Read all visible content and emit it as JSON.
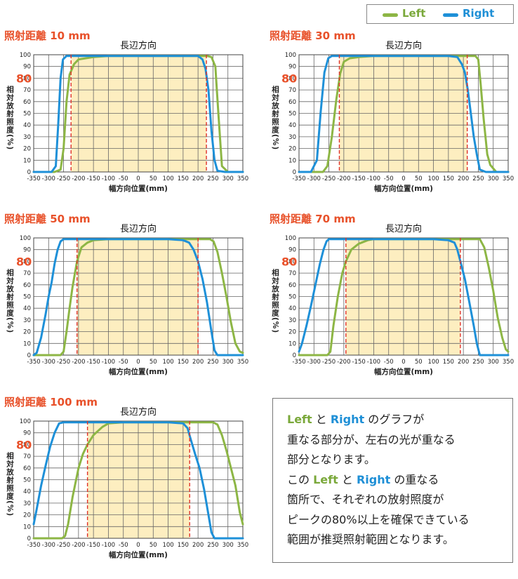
{
  "legend": {
    "left_label": "Left",
    "right_label": "Right"
  },
  "colors": {
    "left": "#8db645",
    "right": "#1e90d8",
    "marker": "#e0322a",
    "title": "#e8512a",
    "fill": "#fdeec0"
  },
  "chart_data": [
    {
      "type": "line",
      "title": "照射距離 10 mm",
      "subtitle": "長辺方向",
      "xlabel": "幅方向位置(mm)",
      "ylabel": "相対放射照度(%)",
      "highlight_label": "80",
      "xlim": [
        -350,
        350
      ],
      "ylim": [
        0,
        100
      ],
      "xticks": [
        -350,
        -300,
        -250,
        -200,
        -150,
        -100,
        -50,
        0,
        50,
        100,
        150,
        200,
        250,
        300,
        350
      ],
      "yticks": [
        0,
        10,
        20,
        30,
        40,
        50,
        60,
        70,
        80,
        90,
        100
      ],
      "region": [
        -225,
        228
      ],
      "series": [
        {
          "name": "Left",
          "x": [
            -350,
            -280,
            -260,
            -250,
            -240,
            -230,
            -215,
            -200,
            -150,
            -100,
            -50,
            0,
            50,
            100,
            150,
            200,
            230,
            245,
            258,
            268,
            280,
            300,
            350
          ],
          "y": [
            0,
            0,
            2,
            20,
            60,
            83,
            92,
            96,
            98,
            99,
            99,
            99,
            99,
            99,
            99,
            99,
            99,
            98,
            90,
            50,
            5,
            0,
            0
          ]
        },
        {
          "name": "Right",
          "x": [
            -350,
            -290,
            -276,
            -268,
            -260,
            -252,
            -240,
            -200,
            -150,
            -100,
            -50,
            0,
            50,
            100,
            150,
            200,
            215,
            225,
            235,
            245,
            255,
            265,
            290,
            350
          ],
          "y": [
            0,
            0,
            5,
            40,
            80,
            96,
            99,
            99,
            99,
            99,
            99,
            99,
            99,
            99,
            99,
            99,
            96,
            88,
            70,
            35,
            10,
            1,
            0,
            0
          ]
        }
      ]
    },
    {
      "type": "line",
      "title": "照射距離 30 mm",
      "subtitle": "長辺方向",
      "xlabel": "幅方向位置(mm)",
      "ylabel": "相対放射照度(%)",
      "highlight_label": "80",
      "xlim": [
        -350,
        350
      ],
      "ylim": [
        0,
        100
      ],
      "xticks": [
        -350,
        -300,
        -250,
        -200,
        -150,
        -100,
        -50,
        0,
        50,
        100,
        150,
        200,
        250,
        300,
        350
      ],
      "yticks": [
        0,
        10,
        20,
        30,
        40,
        50,
        60,
        70,
        80,
        90,
        100
      ],
      "region": [
        -215,
        213
      ],
      "series": [
        {
          "name": "Left",
          "x": [
            -350,
            -270,
            -255,
            -240,
            -225,
            -212,
            -200,
            -180,
            -150,
            -100,
            -50,
            0,
            50,
            100,
            150,
            200,
            225,
            240,
            250,
            258,
            268,
            280,
            290,
            310,
            350
          ],
          "y": [
            0,
            0,
            5,
            30,
            62,
            84,
            94,
            97,
            98,
            99,
            99,
            99,
            99,
            99,
            99,
            99,
            99,
            99,
            96,
            75,
            45,
            15,
            6,
            0,
            0
          ]
        },
        {
          "name": "Right",
          "x": [
            -350,
            -310,
            -290,
            -278,
            -265,
            -252,
            -240,
            -200,
            -150,
            -100,
            -50,
            0,
            50,
            100,
            150,
            180,
            195,
            205,
            215,
            225,
            235,
            245,
            255,
            275,
            350
          ],
          "y": [
            0,
            0,
            10,
            50,
            85,
            97,
            99,
            99,
            99,
            99,
            99,
            99,
            99,
            99,
            99,
            98,
            92,
            85,
            70,
            50,
            30,
            15,
            2,
            0,
            0
          ]
        }
      ]
    },
    {
      "type": "line",
      "title": "照射距離 50 mm",
      "subtitle": "長辺方向",
      "xlabel": "幅方向位置(mm)",
      "ylabel": "相対放射照度(%)",
      "highlight_label": "80",
      "xlim": [
        -350,
        350
      ],
      "ylim": [
        0,
        100
      ],
      "xticks": [
        -350,
        -300,
        -250,
        -200,
        -150,
        -100,
        -50,
        0,
        50,
        100,
        150,
        200,
        250,
        300,
        350
      ],
      "yticks": [
        0,
        10,
        20,
        30,
        40,
        50,
        60,
        70,
        80,
        90,
        100
      ],
      "region": [
        -205,
        200
      ],
      "series": [
        {
          "name": "Left",
          "x": [
            -350,
            -260,
            -250,
            -240,
            -230,
            -220,
            -205,
            -190,
            -170,
            -150,
            -100,
            -50,
            0,
            50,
            100,
            150,
            200,
            225,
            240,
            252,
            265,
            280,
            295,
            310,
            325,
            340,
            350
          ],
          "y": [
            0,
            0,
            3,
            20,
            40,
            58,
            80,
            92,
            96,
            98,
            99,
            99,
            99,
            99,
            99,
            99,
            99,
            99,
            99,
            97,
            88,
            70,
            50,
            28,
            10,
            3,
            2
          ]
        },
        {
          "name": "Right",
          "x": [
            -350,
            -340,
            -325,
            -310,
            -300,
            -290,
            -280,
            -270,
            -260,
            -250,
            -200,
            -150,
            -100,
            -50,
            0,
            50,
            100,
            150,
            170,
            185,
            200,
            215,
            230,
            245,
            255,
            265,
            350
          ],
          "y": [
            0,
            2,
            15,
            35,
            50,
            62,
            78,
            90,
            97,
            99,
            99,
            99,
            99,
            99,
            99,
            99,
            99,
            98,
            96,
            90,
            80,
            65,
            45,
            20,
            4,
            0,
            0
          ]
        }
      ]
    },
    {
      "type": "line",
      "title": "照射距離 70 mm",
      "subtitle": "長辺方向",
      "xlabel": "幅方向位置(mm)",
      "ylabel": "相対放射照度(%)",
      "highlight_label": "80",
      "xlim": [
        -350,
        350
      ],
      "ylim": [
        0,
        100
      ],
      "xticks": [
        -350,
        -300,
        -250,
        -200,
        -150,
        -100,
        -50,
        0,
        50,
        100,
        150,
        200,
        250,
        300,
        350
      ],
      "yticks": [
        0,
        10,
        20,
        30,
        40,
        50,
        60,
        70,
        80,
        90,
        100
      ],
      "region": [
        -193,
        190
      ],
      "series": [
        {
          "name": "Left",
          "x": [
            -350,
            -255,
            -245,
            -235,
            -220,
            -205,
            -193,
            -175,
            -150,
            -120,
            -100,
            -50,
            0,
            50,
            100,
            150,
            200,
            240,
            255,
            270,
            285,
            300,
            315,
            330,
            342,
            350
          ],
          "y": [
            0,
            0,
            3,
            25,
            50,
            70,
            80,
            90,
            95,
            98,
            99,
            99,
            99,
            99,
            99,
            99,
            99,
            99,
            99,
            92,
            75,
            55,
            32,
            15,
            5,
            3
          ]
        },
        {
          "name": "Right",
          "x": [
            -350,
            -340,
            -325,
            -310,
            -295,
            -280,
            -268,
            -258,
            -250,
            -200,
            -150,
            -100,
            -50,
            0,
            50,
            100,
            150,
            170,
            180,
            190,
            205,
            220,
            235,
            245,
            255,
            350
          ],
          "y": [
            3,
            10,
            25,
            42,
            60,
            78,
            90,
            97,
            99,
            99,
            99,
            99,
            99,
            99,
            99,
            99,
            98,
            96,
            90,
            80,
            65,
            45,
            25,
            10,
            0,
            0
          ]
        }
      ]
    },
    {
      "type": "line",
      "title": "照射距離 100 mm",
      "subtitle": "長辺方向",
      "xlabel": "幅方向位置(mm)",
      "ylabel": "相対放射照度(%)",
      "highlight_label": "80",
      "xlim": [
        -350,
        350
      ],
      "ylim": [
        0,
        100
      ],
      "xticks": [
        -350,
        -300,
        -250,
        -200,
        -150,
        -100,
        -50,
        0,
        50,
        100,
        150,
        200,
        250,
        300,
        350
      ],
      "yticks": [
        0,
        10,
        20,
        30,
        40,
        50,
        60,
        70,
        80,
        90,
        100
      ],
      "region": [
        -170,
        172
      ],
      "series": [
        {
          "name": "Left",
          "x": [
            -350,
            -255,
            -245,
            -235,
            -220,
            -200,
            -185,
            -170,
            -150,
            -120,
            -100,
            -50,
            0,
            50,
            100,
            150,
            200,
            250,
            265,
            280,
            295,
            310,
            325,
            340,
            350
          ],
          "y": [
            0,
            0,
            2,
            12,
            35,
            60,
            72,
            80,
            88,
            95,
            98,
            99,
            99,
            99,
            99,
            99,
            99,
            99,
            97,
            88,
            75,
            60,
            45,
            22,
            12
          ]
        },
        {
          "name": "Right",
          "x": [
            -350,
            -340,
            -325,
            -310,
            -295,
            -280,
            -265,
            -250,
            -200,
            -150,
            -100,
            -50,
            0,
            50,
            100,
            150,
            165,
            175,
            190,
            205,
            220,
            235,
            245,
            255,
            265,
            350
          ],
          "y": [
            12,
            25,
            45,
            62,
            78,
            90,
            98,
            99,
            99,
            99,
            99,
            99,
            99,
            99,
            99,
            98,
            94,
            85,
            72,
            60,
            42,
            20,
            5,
            0,
            0,
            0
          ]
        }
      ]
    }
  ],
  "note": {
    "line1_kw_left": "Left",
    "line1_to": "と",
    "line1_kw_right": "Right",
    "line1_rest": "のグラフが",
    "line2": "重なる部分が、左右の光が重なる",
    "line3": "部分となります。",
    "line4_pre": "この",
    "line4_kw_left": "Left",
    "line4_to": "と",
    "line4_kw_right": "Right",
    "line4_rest": "の重なる",
    "line5": "箇所で、それぞれの放射照度が",
    "line6": "ピークの80%以上を確保できている",
    "line7": "範囲が推奨照射範囲となります。"
  }
}
